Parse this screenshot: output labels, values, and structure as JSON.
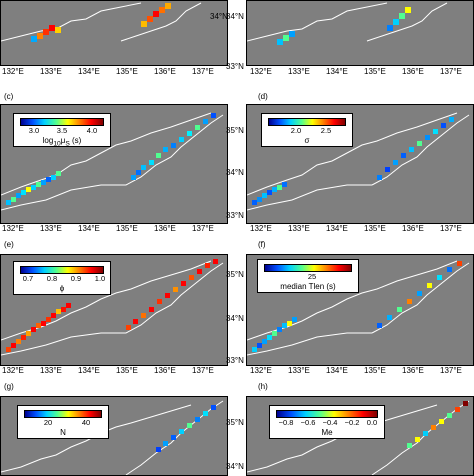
{
  "panels": [
    {
      "label": "(c)",
      "colorbar": {
        "ticks": [
          "3.0",
          "3.5",
          "4.0"
        ],
        "title_html": "log<sub>10</sub>μ<sub>S</sub> (s)",
        "title_text": "log10 μS (s)"
      }
    },
    {
      "label": "(d)",
      "colorbar": {
        "ticks": [
          "2.0",
          "2.5"
        ],
        "title_text": "σ"
      }
    },
    {
      "label": "(e)",
      "colorbar": {
        "ticks": [
          "0.7",
          "0.8",
          "0.9",
          "1.0"
        ],
        "title_text": "ϕ"
      }
    },
    {
      "label": "(f)",
      "colorbar": {
        "ticks": [
          "25"
        ],
        "title_text": "median Tlen (s)"
      }
    },
    {
      "label": "(g)",
      "colorbar": {
        "ticks": [
          "20",
          "40"
        ],
        "title_text": "N"
      }
    },
    {
      "label": "(h)",
      "colorbar": {
        "ticks": [
          "−0.8",
          "−0.6",
          "−0.4",
          "−0.2",
          "0.0"
        ],
        "title_text": "Me"
      }
    }
  ],
  "lon_ticks": [
    "132°E",
    "133°E",
    "134°E",
    "135°E",
    "136°E",
    "137°E"
  ],
  "lat_ticks": [
    "33°N",
    "34°N",
    "35°N"
  ],
  "colors": {
    "background": "#7f7f7f",
    "coast": "#ffffff"
  }
}
